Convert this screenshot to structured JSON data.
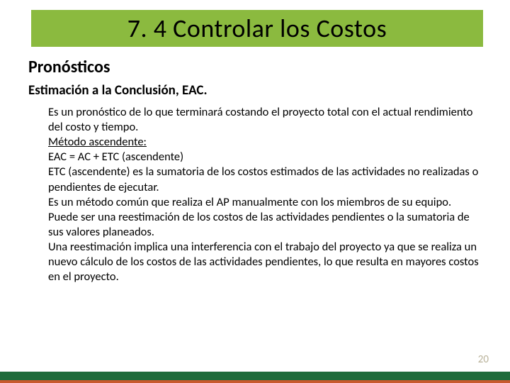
{
  "colors": {
    "title_bg": "#8bba3f",
    "title_text": "#000000",
    "heading_text": "#000000",
    "body_text": "#000000",
    "footer_green": "#1f6b3a",
    "footer_orange": "#c85a2e",
    "page_num": "#b9b29a",
    "background": "#ffffff"
  },
  "typography": {
    "title_fontsize": 36,
    "section_fontsize": 24,
    "sub_fontsize": 19,
    "body_fontsize": 16.5,
    "pagenum_fontsize": 15
  },
  "title": "7. 4 Controlar los Costos",
  "section": "Pronósticos",
  "subsection": "Estimación a la Conclusión, EAC.",
  "paragraphs": [
    "Es un pronóstico de lo que terminará costando el proyecto total con el actual rendimiento del costo y tiempo.",
    "Método ascendente:",
    "EAC = AC + ETC (ascendente)",
    "ETC (ascendente) es la sumatoria de los costos estimados de las actividades no realizadas o pendientes de ejecutar.",
    "Es un método común que realiza el AP manualmente con los miembros de su equipo.",
    "Puede ser una reestimación de los costos de las actividades pendientes o la sumatoria de sus valores planeados.",
    "Una reestimación implica una interferencia con el trabajo del proyecto ya que se realiza un nuevo cálculo de los costos de las actividades pendientes, lo que resulta en mayores costos en el proyecto."
  ],
  "underlined_index": 1,
  "page_number": "20"
}
